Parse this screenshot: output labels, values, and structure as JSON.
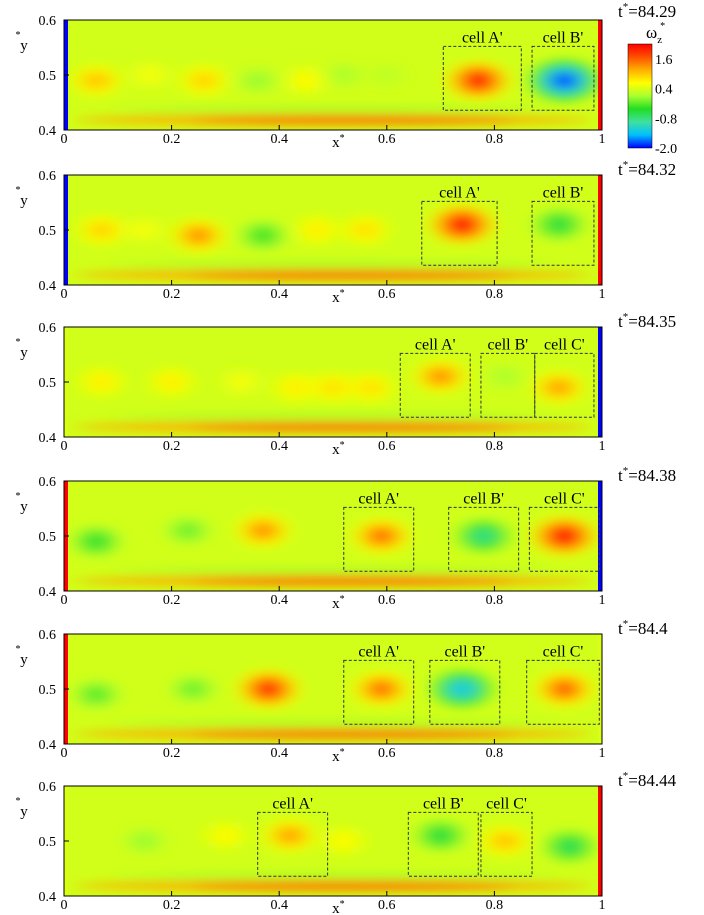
{
  "colorbar": {
    "label": "ω",
    "label_sub": "z",
    "label_sup": "*",
    "ticks": [
      "1.6",
      "0.4",
      "-0.8",
      "-2.0"
    ],
    "tick_values": [
      1.6,
      0.4,
      -0.8,
      -2.0
    ],
    "range": [
      -2.0,
      2.2
    ],
    "colors": [
      "#0000ff",
      "#00bfff",
      "#40e0a0",
      "#22dd22",
      "#a8ff30",
      "#ffff00",
      "#ffb000",
      "#ff5000",
      "#ff0000"
    ]
  },
  "axes": {
    "xlabel": "x",
    "xlabel_sup": "*",
    "ylabel": "y",
    "ylabel_sup": "*",
    "xticks": [
      "0",
      "0.2",
      "0.4",
      "0.6",
      "0.8",
      "1"
    ],
    "xtick_values": [
      0,
      0.2,
      0.4,
      0.6,
      0.8,
      1.0
    ],
    "yticks": [
      "0.6",
      "0.5",
      "0.4"
    ],
    "ytick_values": [
      0.6,
      0.5,
      0.4
    ],
    "xlim": [
      0,
      1
    ],
    "ylim": [
      0.4,
      0.6
    ]
  },
  "chart_data": [
    {
      "type": "heatmap",
      "time_label": "t",
      "time_sup": "*",
      "time_value": "=84.29",
      "wall_left": -2.0,
      "wall_right": 2.2,
      "vortices": [
        {
          "x": 0.06,
          "y": 0.49,
          "value": 1.1
        },
        {
          "x": 0.16,
          "y": 0.5,
          "value": 0.6
        },
        {
          "x": 0.26,
          "y": 0.49,
          "value": 1.0
        },
        {
          "x": 0.36,
          "y": 0.49,
          "value": 0.0
        },
        {
          "x": 0.45,
          "y": 0.49,
          "value": 0.7
        },
        {
          "x": 0.52,
          "y": 0.5,
          "value": 0.1
        },
        {
          "x": 0.6,
          "y": 0.5,
          "value": 0.2
        },
        {
          "x": 0.77,
          "y": 0.49,
          "value": 2.1
        },
        {
          "x": 0.93,
          "y": 0.49,
          "value": -2.0
        }
      ],
      "cells": [
        {
          "label": "cell A'",
          "x0": 0.705,
          "x1": 0.85
        },
        {
          "label": "cell B'",
          "x0": 0.87,
          "x1": 0.985
        }
      ]
    },
    {
      "type": "heatmap",
      "time_label": "t",
      "time_sup": "*",
      "time_value": "=84.32",
      "wall_left": -2.0,
      "wall_right": 2.2,
      "vortices": [
        {
          "x": 0.07,
          "y": 0.5,
          "value": 1.0
        },
        {
          "x": 0.15,
          "y": 0.5,
          "value": 0.6
        },
        {
          "x": 0.25,
          "y": 0.49,
          "value": 1.4
        },
        {
          "x": 0.37,
          "y": 0.49,
          "value": -0.4
        },
        {
          "x": 0.47,
          "y": 0.5,
          "value": 0.8
        },
        {
          "x": 0.56,
          "y": 0.5,
          "value": 0.9
        },
        {
          "x": 0.74,
          "y": 0.51,
          "value": 2.2
        },
        {
          "x": 0.92,
          "y": 0.51,
          "value": -0.6
        }
      ],
      "cells": [
        {
          "label": "cell A'",
          "x0": 0.665,
          "x1": 0.805
        },
        {
          "label": "cell B'",
          "x0": 0.87,
          "x1": 0.985
        }
      ]
    },
    {
      "type": "heatmap",
      "time_label": "t",
      "time_sup": "*",
      "time_value": "=84.35",
      "wall_left": 0.4,
      "wall_right": -2.0,
      "vortices": [
        {
          "x": 0.07,
          "y": 0.5,
          "value": 0.8
        },
        {
          "x": 0.2,
          "y": 0.5,
          "value": 0.8
        },
        {
          "x": 0.33,
          "y": 0.5,
          "value": 0.6
        },
        {
          "x": 0.43,
          "y": 0.49,
          "value": 0.8
        },
        {
          "x": 0.5,
          "y": 0.49,
          "value": 0.9
        },
        {
          "x": 0.57,
          "y": 0.49,
          "value": 0.9
        },
        {
          "x": 0.7,
          "y": 0.51,
          "value": 1.4
        },
        {
          "x": 0.82,
          "y": 0.51,
          "value": 0.1
        },
        {
          "x": 0.92,
          "y": 0.49,
          "value": 1.3
        }
      ],
      "cells": [
        {
          "label": "cell A'",
          "x0": 0.625,
          "x1": 0.755
        },
        {
          "label": "cell B'",
          "x0": 0.775,
          "x1": 0.875
        },
        {
          "label": "cell C'",
          "x0": 0.875,
          "x1": 0.985
        }
      ]
    },
    {
      "type": "heatmap",
      "time_label": "t",
      "time_sup": "*",
      "time_value": "=84.38",
      "wall_left": 2.2,
      "wall_right": -2.0,
      "vortices": [
        {
          "x": 0.06,
          "y": 0.49,
          "value": -0.5
        },
        {
          "x": 0.23,
          "y": 0.51,
          "value": -0.2
        },
        {
          "x": 0.37,
          "y": 0.51,
          "value": 1.4
        },
        {
          "x": 0.59,
          "y": 0.5,
          "value": 1.6
        },
        {
          "x": 0.78,
          "y": 0.5,
          "value": -0.9
        },
        {
          "x": 0.93,
          "y": 0.5,
          "value": 2.2
        }
      ],
      "cells": [
        {
          "label": "cell A'",
          "x0": 0.52,
          "x1": 0.65
        },
        {
          "label": "cell B'",
          "x0": 0.715,
          "x1": 0.845
        },
        {
          "label": "cell C'",
          "x0": 0.865,
          "x1": 0.995
        }
      ]
    },
    {
      "type": "heatmap",
      "time_label": "t",
      "time_sup": "*",
      "time_value": "=84.4",
      "wall_left": 2.2,
      "wall_right": 0.4,
      "vortices": [
        {
          "x": 0.06,
          "y": 0.49,
          "value": -0.3
        },
        {
          "x": 0.24,
          "y": 0.5,
          "value": -0.2
        },
        {
          "x": 0.38,
          "y": 0.5,
          "value": 2.0
        },
        {
          "x": 0.59,
          "y": 0.5,
          "value": 1.6
        },
        {
          "x": 0.74,
          "y": 0.5,
          "value": -1.4
        },
        {
          "x": 0.93,
          "y": 0.5,
          "value": 1.7
        }
      ],
      "cells": [
        {
          "label": "cell A'",
          "x0": 0.52,
          "x1": 0.65
        },
        {
          "label": "cell B'",
          "x0": 0.68,
          "x1": 0.81
        },
        {
          "label": "cell C'",
          "x0": 0.86,
          "x1": 0.995
        }
      ]
    },
    {
      "type": "heatmap",
      "time_label": "t",
      "time_sup": "*",
      "time_value": "=84.44",
      "wall_left": 0.4,
      "wall_right": 2.2,
      "vortices": [
        {
          "x": 0.15,
          "y": 0.5,
          "value": 0.0
        },
        {
          "x": 0.3,
          "y": 0.51,
          "value": 0.7
        },
        {
          "x": 0.42,
          "y": 0.51,
          "value": 1.3
        },
        {
          "x": 0.52,
          "y": 0.5,
          "value": 0.7
        },
        {
          "x": 0.7,
          "y": 0.51,
          "value": -0.6
        },
        {
          "x": 0.82,
          "y": 0.5,
          "value": 1.1
        },
        {
          "x": 0.94,
          "y": 0.49,
          "value": -0.7
        }
      ],
      "cells": [
        {
          "label": "cell A'",
          "x0": 0.36,
          "x1": 0.49
        },
        {
          "label": "cell B'",
          "x0": 0.64,
          "x1": 0.77
        },
        {
          "label": "cell C'",
          "x0": 0.775,
          "x1": 0.87
        }
      ]
    }
  ]
}
